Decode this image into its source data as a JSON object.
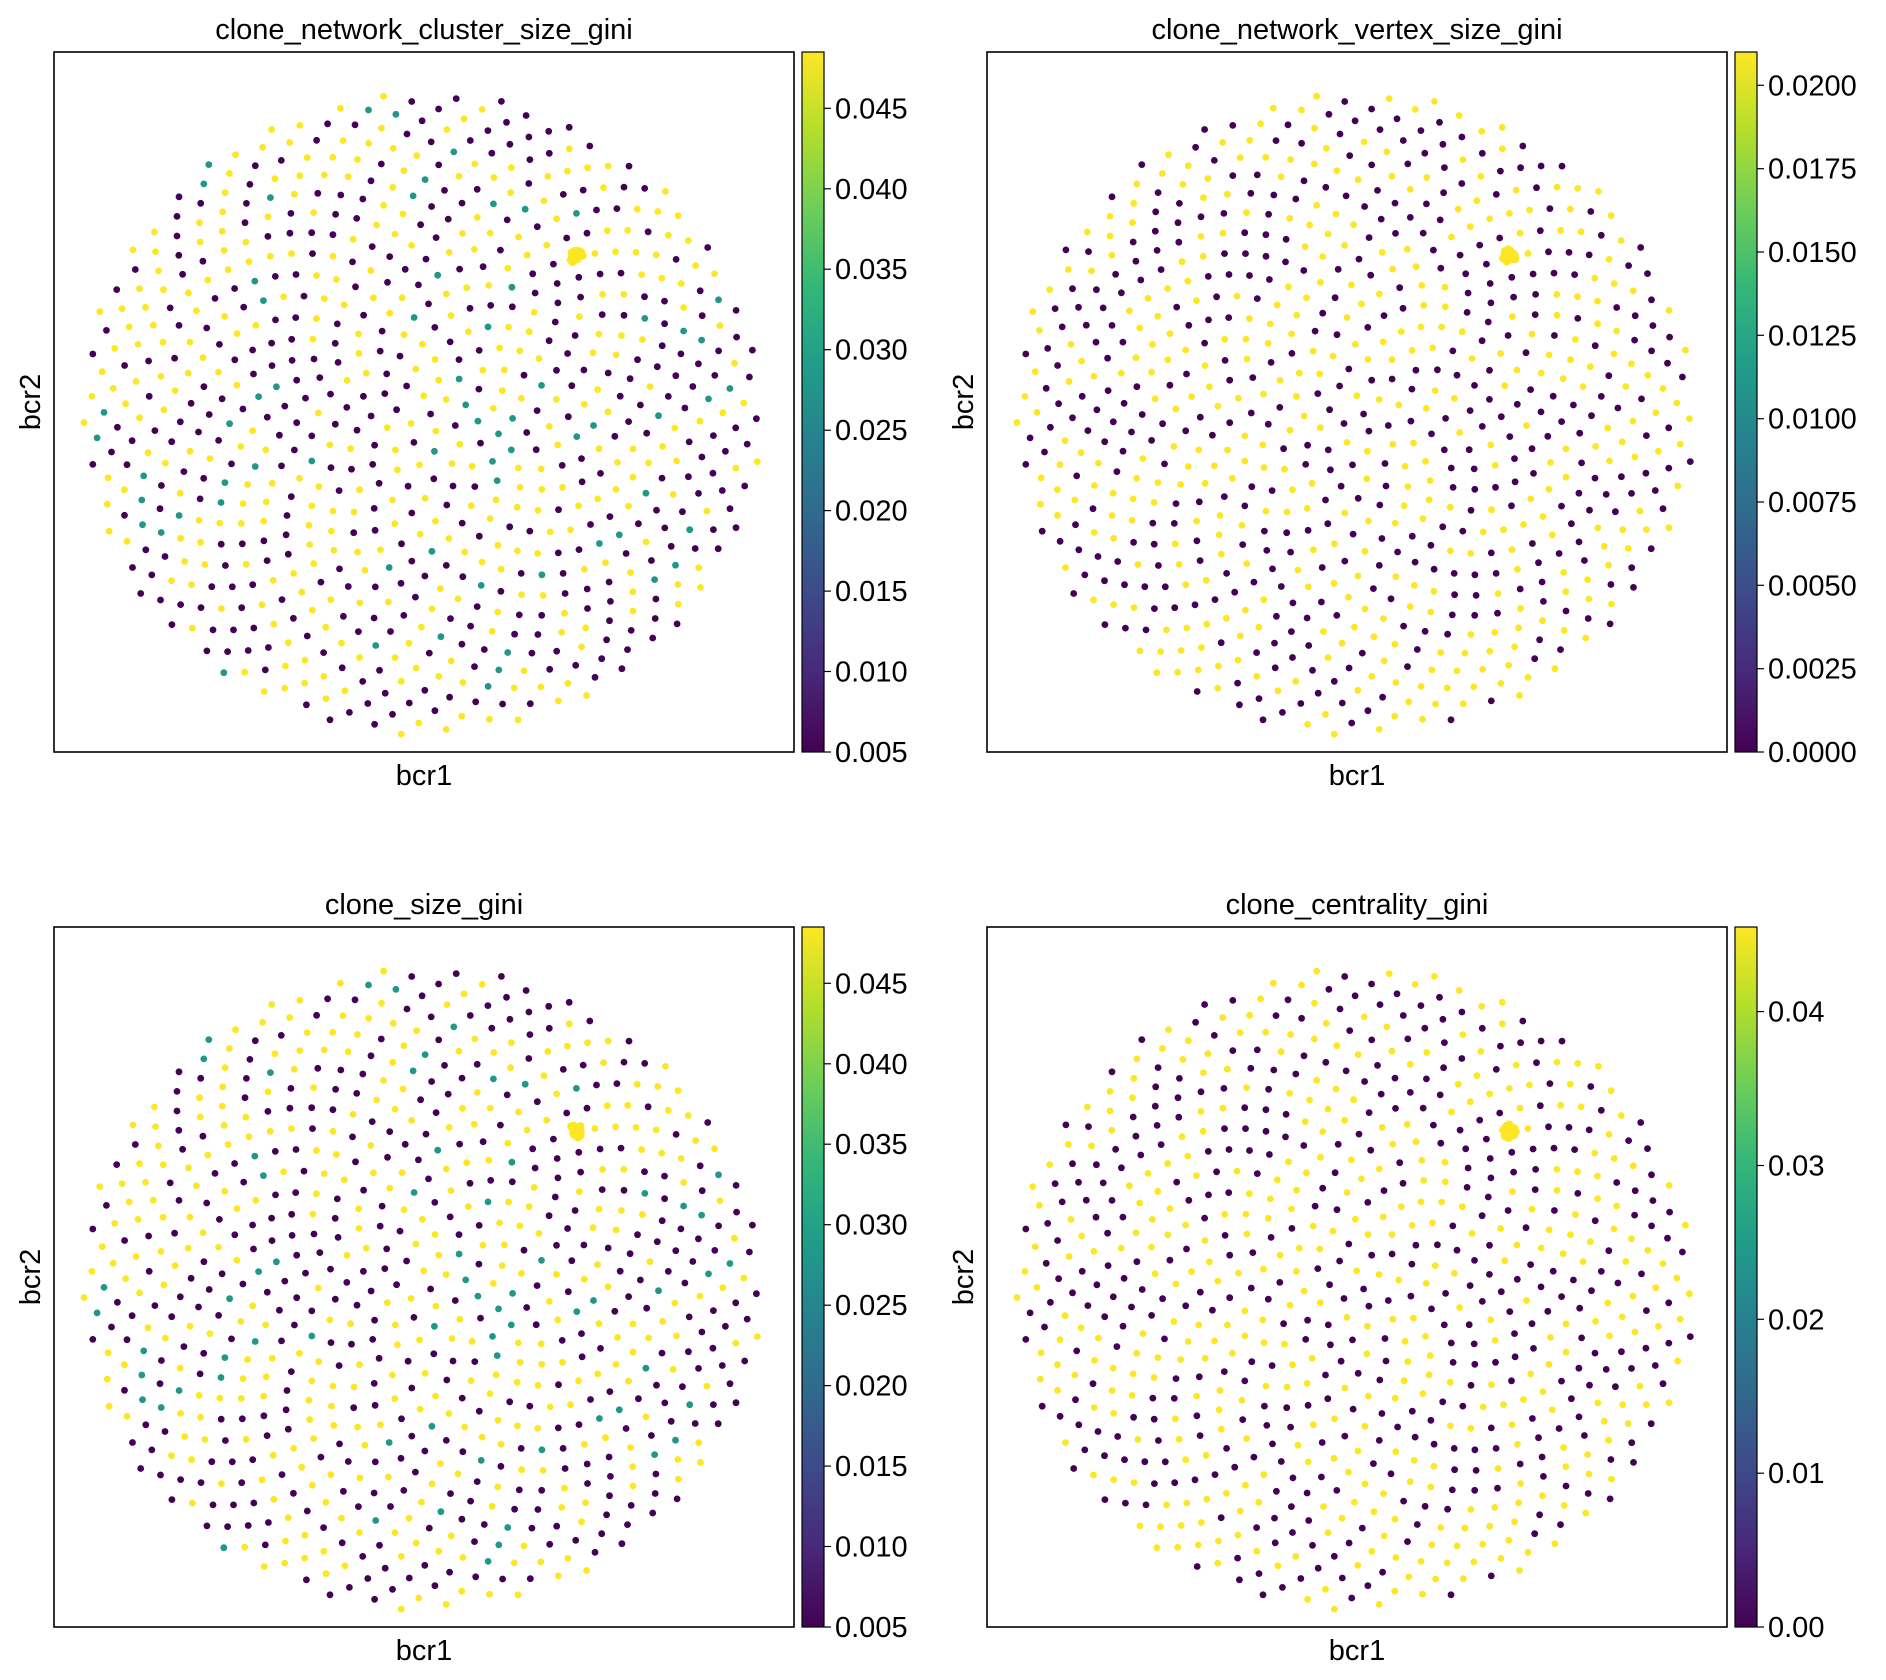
{
  "figure": {
    "background": "#ffffff"
  },
  "colormap": {
    "name": "viridis",
    "stops": [
      "#440154",
      "#482878",
      "#3e4989",
      "#31688e",
      "#26828e",
      "#1f9e89",
      "#35b779",
      "#6ece58",
      "#b5de2b",
      "#fde725"
    ]
  },
  "chart_data": [
    {
      "type": "scatter",
      "title": "clone_network_cluster_size_gini",
      "xlabel": "bcr1",
      "ylabel": "bcr2",
      "ticks_shown": false,
      "grid": false,
      "layout": "spiral disc of evenly spaced points with one dense node cluster near the upper right",
      "color_scale": {
        "min": 0.005,
        "max": 0.0485,
        "ticks": [
          "0.005",
          "0.010",
          "0.015",
          "0.020",
          "0.025",
          "0.030",
          "0.035",
          "0.040",
          "0.045"
        ]
      },
      "point_values": [
        0.005,
        0.028,
        0.0485
      ],
      "approx_fractions": [
        0.46,
        0.09,
        0.45
      ],
      "cluster_value": 0.0485
    },
    {
      "type": "scatter",
      "title": "clone_network_vertex_size_gini",
      "xlabel": "bcr1",
      "ylabel": "bcr2",
      "ticks_shown": false,
      "grid": false,
      "layout": "spiral disc of evenly spaced points with one dense node cluster near the upper right",
      "color_scale": {
        "min": 0.0,
        "max": 0.021,
        "ticks": [
          "0.0000",
          "0.0025",
          "0.0050",
          "0.0075",
          "0.0100",
          "0.0125",
          "0.0150",
          "0.0175",
          "0.0200"
        ]
      },
      "point_values": [
        0.0,
        0.021
      ],
      "approx_fractions": [
        0.5,
        0.5
      ],
      "cluster_value": 0.021
    },
    {
      "type": "scatter",
      "title": "clone_size_gini",
      "xlabel": "bcr1",
      "ylabel": "bcr2",
      "ticks_shown": false,
      "grid": false,
      "layout": "spiral disc of evenly spaced points with one dense node cluster near the upper right",
      "color_scale": {
        "min": 0.005,
        "max": 0.0485,
        "ticks": [
          "0.005",
          "0.010",
          "0.015",
          "0.020",
          "0.025",
          "0.030",
          "0.035",
          "0.040",
          "0.045"
        ]
      },
      "point_values": [
        0.005,
        0.028,
        0.0485
      ],
      "approx_fractions": [
        0.46,
        0.09,
        0.45
      ],
      "cluster_value": 0.0485
    },
    {
      "type": "scatter",
      "title": "clone_centrality_gini",
      "xlabel": "bcr1",
      "ylabel": "bcr2",
      "ticks_shown": false,
      "grid": false,
      "layout": "spiral disc of evenly spaced points with one dense node cluster near the upper right",
      "color_scale": {
        "min": 0.0,
        "max": 0.0455,
        "ticks": [
          "0.00",
          "0.01",
          "0.02",
          "0.03",
          "0.04"
        ]
      },
      "point_values": [
        0.0,
        0.0455
      ],
      "approx_fractions": [
        0.5,
        0.5
      ],
      "cluster_value": 0.0455
    }
  ]
}
